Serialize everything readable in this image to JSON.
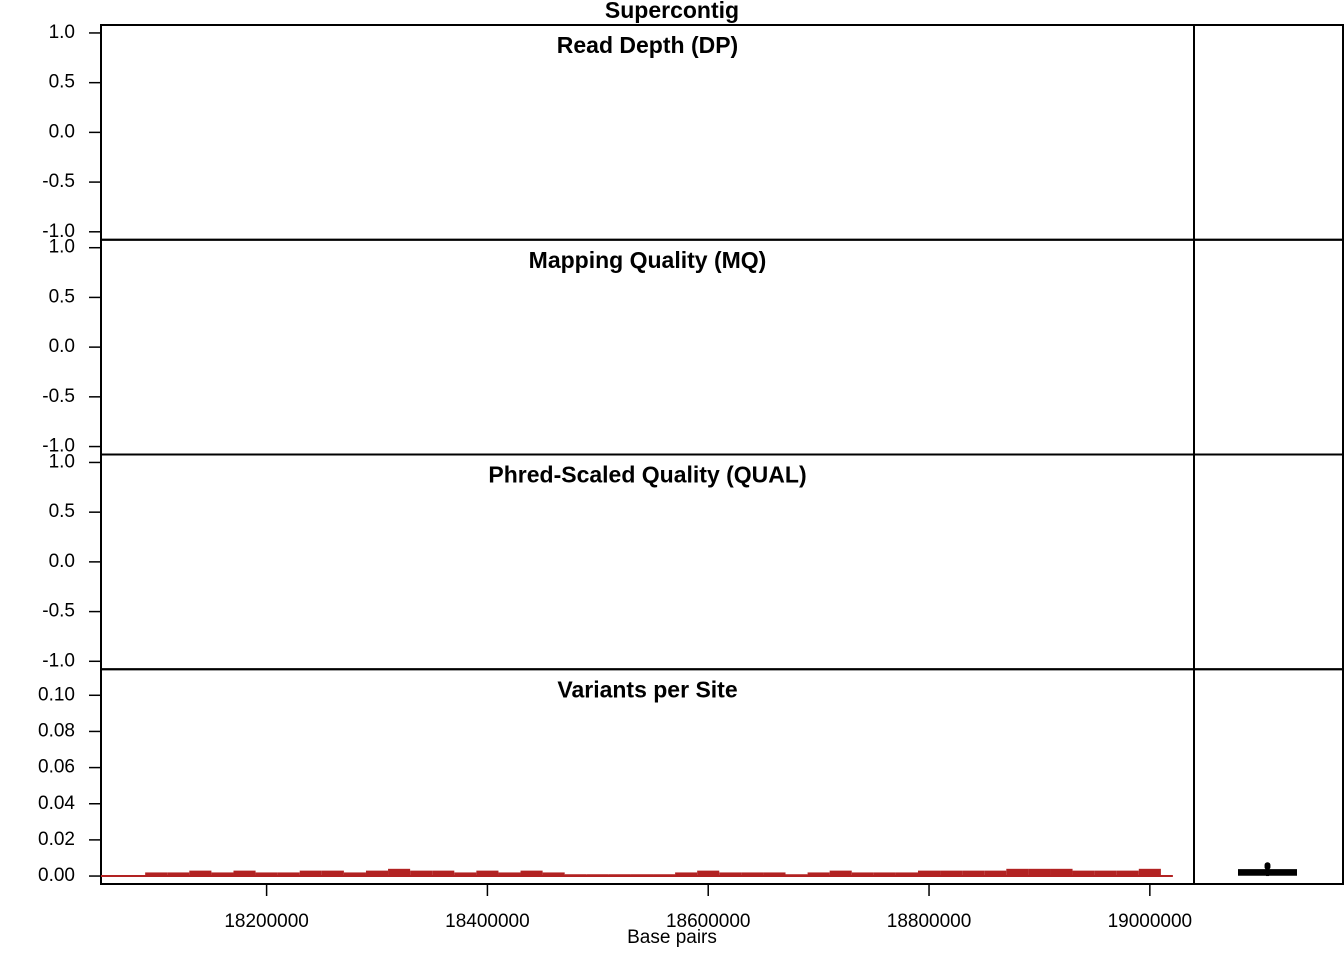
{
  "title": "Supercontig",
  "chart_data": [
    {
      "type": "line",
      "title": "Read Depth (DP)",
      "ylim": [
        -1.08,
        1.08
      ],
      "yticks": [
        {
          "value": -1,
          "label": "-1.0"
        },
        {
          "value": -0.5,
          "label": "-0.5"
        },
        {
          "value": 0,
          "label": "0.0"
        },
        {
          "value": 0.5,
          "label": "0.5"
        },
        {
          "value": 1,
          "label": "1.0"
        }
      ]
    },
    {
      "type": "line",
      "title": "Mapping Quality (MQ)",
      "ylim": [
        -1.08,
        1.08
      ],
      "yticks": [
        {
          "value": -1,
          "label": "-1.0"
        },
        {
          "value": -0.5,
          "label": "-0.5"
        },
        {
          "value": 0,
          "label": "0.0"
        },
        {
          "value": 0.5,
          "label": "0.5"
        },
        {
          "value": 1,
          "label": "1.0"
        }
      ]
    },
    {
      "type": "line",
      "title": "Phred-Scaled Quality (QUAL)",
      "ylim": [
        -1.08,
        1.08
      ],
      "yticks": [
        {
          "value": -1,
          "label": "-1.0"
        },
        {
          "value": -0.5,
          "label": "-0.5"
        },
        {
          "value": 0,
          "label": "0.0"
        },
        {
          "value": 0.5,
          "label": "0.5"
        },
        {
          "value": 1,
          "label": "1.0"
        }
      ]
    },
    {
      "type": "histogram",
      "title": "Variants per Site",
      "xlabel": "Base pairs",
      "color": "#b22222",
      "xlim": [
        18050000,
        19040000
      ],
      "xticks": [
        18200000,
        18400000,
        18600000,
        18800000,
        19000000
      ],
      "ylim": [
        -0.0044,
        0.1144
      ],
      "yticks": [
        {
          "value": 0,
          "label": "0.00"
        },
        {
          "value": 0.02,
          "label": "0.02"
        },
        {
          "value": 0.04,
          "label": "0.04"
        },
        {
          "value": 0.06,
          "label": "0.06"
        },
        {
          "value": 0.08,
          "label": "0.08"
        },
        {
          "value": 0.1,
          "label": "0.10"
        }
      ],
      "bins": [
        18090000,
        18110000,
        18130000,
        18150000,
        18170000,
        18190000,
        18210000,
        18230000,
        18250000,
        18270000,
        18290000,
        18310000,
        18330000,
        18350000,
        18370000,
        18390000,
        18410000,
        18430000,
        18450000,
        18470000,
        18490000,
        18510000,
        18530000,
        18550000,
        18570000,
        18590000,
        18610000,
        18630000,
        18650000,
        18670000,
        18690000,
        18710000,
        18730000,
        18750000,
        18770000,
        18790000,
        18810000,
        18830000,
        18850000,
        18870000,
        18890000,
        18910000,
        18930000,
        18950000,
        18970000,
        18990000,
        19010000
      ],
      "values": [
        0.002,
        0.002,
        0.003,
        0.002,
        0.003,
        0.002,
        0.002,
        0.003,
        0.003,
        0.002,
        0.003,
        0.004,
        0.003,
        0.003,
        0.002,
        0.003,
        0.002,
        0.003,
        0.002,
        0.001,
        0.001,
        0.001,
        0.001,
        0.001,
        0.002,
        0.003,
        0.002,
        0.002,
        0.002,
        0.001,
        0.002,
        0.003,
        0.002,
        0.002,
        0.002,
        0.003,
        0.003,
        0.003,
        0.003,
        0.004,
        0.004,
        0.004,
        0.003,
        0.003,
        0.003,
        0.004
      ],
      "boxplot": {
        "min": 0,
        "q1": 0.001,
        "median": 0.002,
        "q3": 0.003,
        "max": 0.004,
        "outliers": [
          0.005,
          0.006
        ]
      }
    }
  ]
}
